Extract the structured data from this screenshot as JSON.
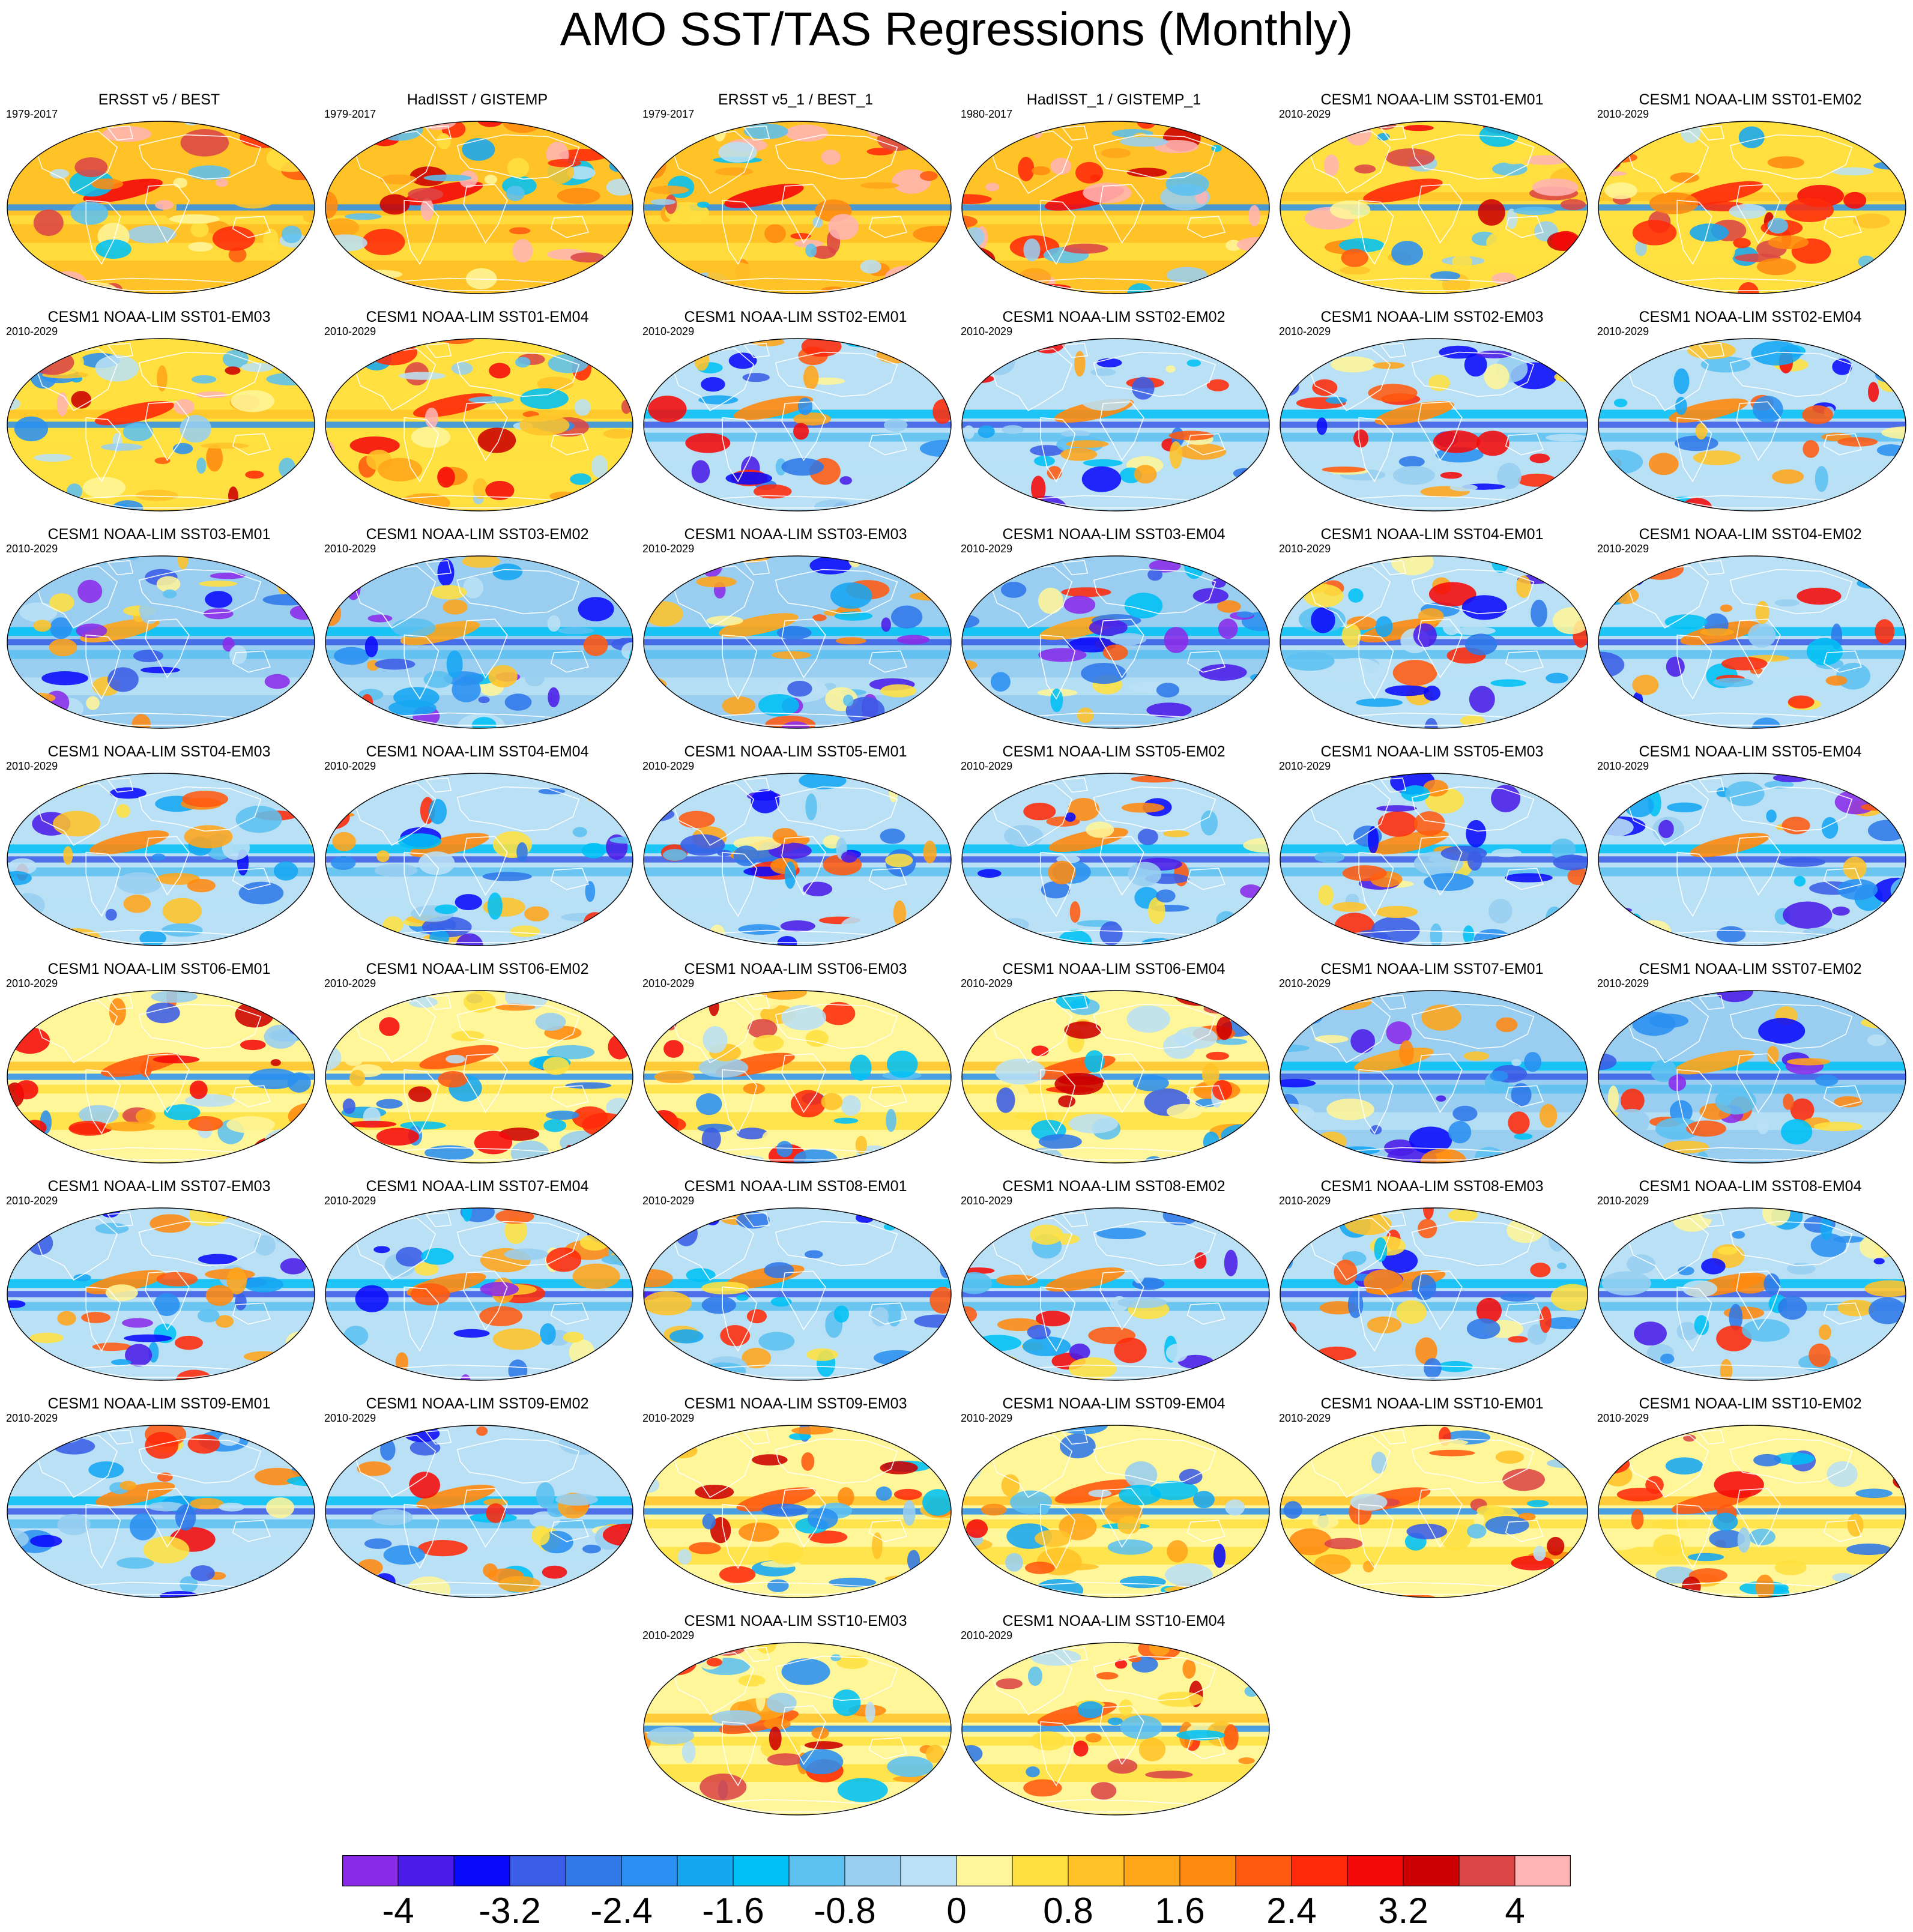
{
  "chart_data": {
    "type": "heatmap",
    "title": "AMO SST/TAS Regressions (Monthly)",
    "projection": "global map (elliptical)",
    "colorbar": {
      "labels": [
        "-4",
        "-3.2",
        "-2.4",
        "-1.6",
        "-0.8",
        "0",
        "0.8",
        "1.6",
        "2.4",
        "3.2",
        "4"
      ],
      "levels": [
        -4,
        -3.6,
        -3.2,
        -2.8,
        -2.4,
        -2.0,
        -1.6,
        -1.2,
        -0.8,
        -0.4,
        0,
        0.4,
        0.8,
        1.2,
        1.6,
        2.0,
        2.4,
        2.8,
        3.2,
        3.6,
        4
      ],
      "colors": [
        "#8a2be8",
        "#4b1ce8",
        "#0a0afa",
        "#3a5ce6",
        "#2f78e8",
        "#2a8ff0",
        "#16a6f2",
        "#00c0f5",
        "#5cc0f0",
        "#99cef0",
        "#b9e0f5",
        "#fff599",
        "#ffe040",
        "#ffc328",
        "#ffa51a",
        "#ff8a10",
        "#ff5a10",
        "#ff2a0a",
        "#f50a0a",
        "#cc0000",
        "#dc4646",
        "#ffb4b4"
      ]
    },
    "panels": [
      {
        "title": "ERSST v5 / BEST",
        "years": "1979-2017",
        "bias": 0.9
      },
      {
        "title": "HadISST / GISTEMP",
        "years": "1979-2017",
        "bias": 0.9
      },
      {
        "title": "ERSST v5_1 / BEST_1",
        "years": "1979-2017",
        "bias": 0.9
      },
      {
        "title": "HadISST_1 / GISTEMP_1",
        "years": "1980-2017",
        "bias": 0.9
      },
      {
        "title": "CESM1 NOAA-LIM SST01-EM01",
        "years": "2010-2029",
        "bias": 0.6
      },
      {
        "title": "CESM1 NOAA-LIM SST01-EM02",
        "years": "2010-2029",
        "bias": 0.6
      },
      {
        "title": "CESM1 NOAA-LIM SST01-EM03",
        "years": "2010-2029",
        "bias": 0.6
      },
      {
        "title": "CESM1 NOAA-LIM SST01-EM04",
        "years": "2010-2029",
        "bias": 0.6
      },
      {
        "title": "CESM1 NOAA-LIM SST02-EM01",
        "years": "2010-2029",
        "bias": -0.2
      },
      {
        "title": "CESM1 NOAA-LIM SST02-EM02",
        "years": "2010-2029",
        "bias": -0.2
      },
      {
        "title": "CESM1 NOAA-LIM SST02-EM03",
        "years": "2010-2029",
        "bias": -0.2
      },
      {
        "title": "CESM1 NOAA-LIM SST02-EM04",
        "years": "2010-2029",
        "bias": -0.2
      },
      {
        "title": "CESM1 NOAA-LIM SST03-EM01",
        "years": "2010-2029",
        "bias": -0.6
      },
      {
        "title": "CESM1 NOAA-LIM SST03-EM02",
        "years": "2010-2029",
        "bias": -0.6
      },
      {
        "title": "CESM1 NOAA-LIM SST03-EM03",
        "years": "2010-2029",
        "bias": -0.6
      },
      {
        "title": "CESM1 NOAA-LIM SST03-EM04",
        "years": "2010-2029",
        "bias": -0.6
      },
      {
        "title": "CESM1 NOAA-LIM SST04-EM01",
        "years": "2010-2029",
        "bias": -0.3
      },
      {
        "title": "CESM1 NOAA-LIM SST04-EM02",
        "years": "2010-2029",
        "bias": -0.3
      },
      {
        "title": "CESM1 NOAA-LIM SST04-EM03",
        "years": "2010-2029",
        "bias": -0.3
      },
      {
        "title": "CESM1 NOAA-LIM SST04-EM04",
        "years": "2010-2029",
        "bias": -0.3
      },
      {
        "title": "CESM1 NOAA-LIM SST05-EM01",
        "years": "2010-2029",
        "bias": -0.4
      },
      {
        "title": "CESM1 NOAA-LIM SST05-EM02",
        "years": "2010-2029",
        "bias": -0.4
      },
      {
        "title": "CESM1 NOAA-LIM SST05-EM03",
        "years": "2010-2029",
        "bias": -0.4
      },
      {
        "title": "CESM1 NOAA-LIM SST05-EM04",
        "years": "2010-2029",
        "bias": -0.4
      },
      {
        "title": "CESM1 NOAA-LIM SST06-EM01",
        "years": "2010-2029",
        "bias": 0.2
      },
      {
        "title": "CESM1 NOAA-LIM SST06-EM02",
        "years": "2010-2029",
        "bias": 0.2
      },
      {
        "title": "CESM1 NOAA-LIM SST06-EM03",
        "years": "2010-2029",
        "bias": 0.2
      },
      {
        "title": "CESM1 NOAA-LIM SST06-EM04",
        "years": "2010-2029",
        "bias": 0.2
      },
      {
        "title": "CESM1 NOAA-LIM SST07-EM01",
        "years": "2010-2029",
        "bias": -0.5
      },
      {
        "title": "CESM1 NOAA-LIM SST07-EM02",
        "years": "2010-2029",
        "bias": -0.5
      },
      {
        "title": "CESM1 NOAA-LIM SST07-EM03",
        "years": "2010-2029",
        "bias": -0.4
      },
      {
        "title": "CESM1 NOAA-LIM SST07-EM04",
        "years": "2010-2029",
        "bias": -0.4
      },
      {
        "title": "CESM1 NOAA-LIM SST08-EM01",
        "years": "2010-2029",
        "bias": -0.2
      },
      {
        "title": "CESM1 NOAA-LIM SST08-EM02",
        "years": "2010-2029",
        "bias": -0.2
      },
      {
        "title": "CESM1 NOAA-LIM SST08-EM03",
        "years": "2010-2029",
        "bias": -0.2
      },
      {
        "title": "CESM1 NOAA-LIM SST08-EM04",
        "years": "2010-2029",
        "bias": -0.2
      },
      {
        "title": "CESM1 NOAA-LIM SST09-EM01",
        "years": "2010-2029",
        "bias": -0.2
      },
      {
        "title": "CESM1 NOAA-LIM SST09-EM02",
        "years": "2010-2029",
        "bias": -0.2
      },
      {
        "title": "CESM1 NOAA-LIM SST09-EM03",
        "years": "2010-2029",
        "bias": 0.1
      },
      {
        "title": "CESM1 NOAA-LIM SST09-EM04",
        "years": "2010-2029",
        "bias": 0.1
      },
      {
        "title": "CESM1 NOAA-LIM SST10-EM01",
        "years": "2010-2029",
        "bias": 0.3
      },
      {
        "title": "CESM1 NOAA-LIM SST10-EM02",
        "years": "2010-2029",
        "bias": 0.3
      },
      {
        "title": "CESM1 NOAA-LIM SST10-EM03",
        "years": "2010-2029",
        "bias": 0.3
      },
      {
        "title": "CESM1 NOAA-LIM SST10-EM04",
        "years": "2010-2029",
        "bias": 0.3
      }
    ]
  }
}
